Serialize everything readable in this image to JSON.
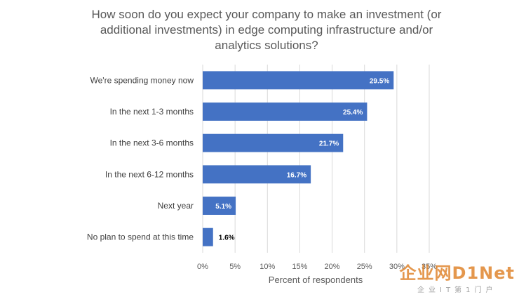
{
  "chart_data": {
    "type": "bar",
    "orientation": "horizontal",
    "title": "How soon do you expect your company to make an investment (or additional investments) in edge computing infrastructure and/or analytics solutions?",
    "categories": [
      "We're spending money now",
      "In the next 1-3 months",
      "In the next 3-6 months",
      "In the next 6-12 months",
      "Next year",
      "No plan to spend at this time"
    ],
    "values": [
      29.5,
      25.4,
      21.7,
      16.7,
      5.1,
      1.6
    ],
    "data_labels": [
      "29.5%",
      "25.4%",
      "21.7%",
      "16.7%",
      "5.1%",
      "1.6%"
    ],
    "xlabel": "Percent of respondents",
    "ylabel": "",
    "xlim": [
      0,
      35
    ],
    "ticks": [
      0,
      5,
      10,
      15,
      20,
      25,
      30,
      35
    ],
    "tick_labels": [
      "0%",
      "5%",
      "10%",
      "15%",
      "20%",
      "25%",
      "30%",
      "35%"
    ],
    "grid": true,
    "bar_color": "#4472c4"
  },
  "watermark": {
    "main": "企业网D1Net",
    "sub": "企业IT第1门户"
  }
}
